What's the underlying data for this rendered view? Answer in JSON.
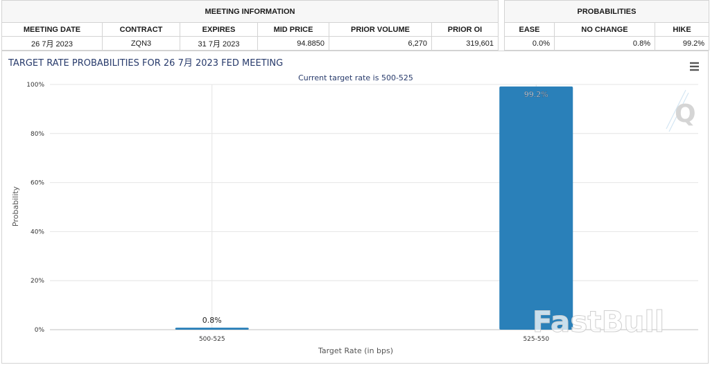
{
  "meeting_info": {
    "header": "MEETING INFORMATION",
    "columns": [
      "MEETING DATE",
      "CONTRACT",
      "EXPIRES",
      "MID PRICE",
      "PRIOR VOLUME",
      "PRIOR OI"
    ],
    "row": [
      "26 7月 2023",
      "ZQN3",
      "31 7月 2023",
      "94.8850",
      "6,270",
      "319,601"
    ]
  },
  "probabilities": {
    "header": "PROBABILITIES",
    "columns": [
      "EASE",
      "NO CHANGE",
      "HIKE"
    ],
    "row": [
      "0.0%",
      "0.8%",
      "99.2%"
    ]
  },
  "chart_data": {
    "type": "bar",
    "title": "TARGET RATE PROBABILITIES FOR 26 7月 2023 FED MEETING",
    "subtitle": "Current target rate is 500-525",
    "xlabel": "Target Rate (in bps)",
    "ylabel": "Probability",
    "categories": [
      "500-525",
      "525-550"
    ],
    "values": [
      0.8,
      99.2
    ],
    "data_labels": [
      "0.8%",
      "99.2%"
    ],
    "ylim": [
      0,
      100
    ],
    "yticks": [
      "0%",
      "20%",
      "40%",
      "60%",
      "80%",
      "100%"
    ],
    "ytick_values": [
      0,
      20,
      40,
      60,
      80,
      100
    ],
    "bar_color": "#2a80b9",
    "grid": true,
    "legend": "none"
  },
  "watermark": "FastBull",
  "icons": {
    "menu": "menu-icon",
    "logo": "q-logo-icon"
  }
}
